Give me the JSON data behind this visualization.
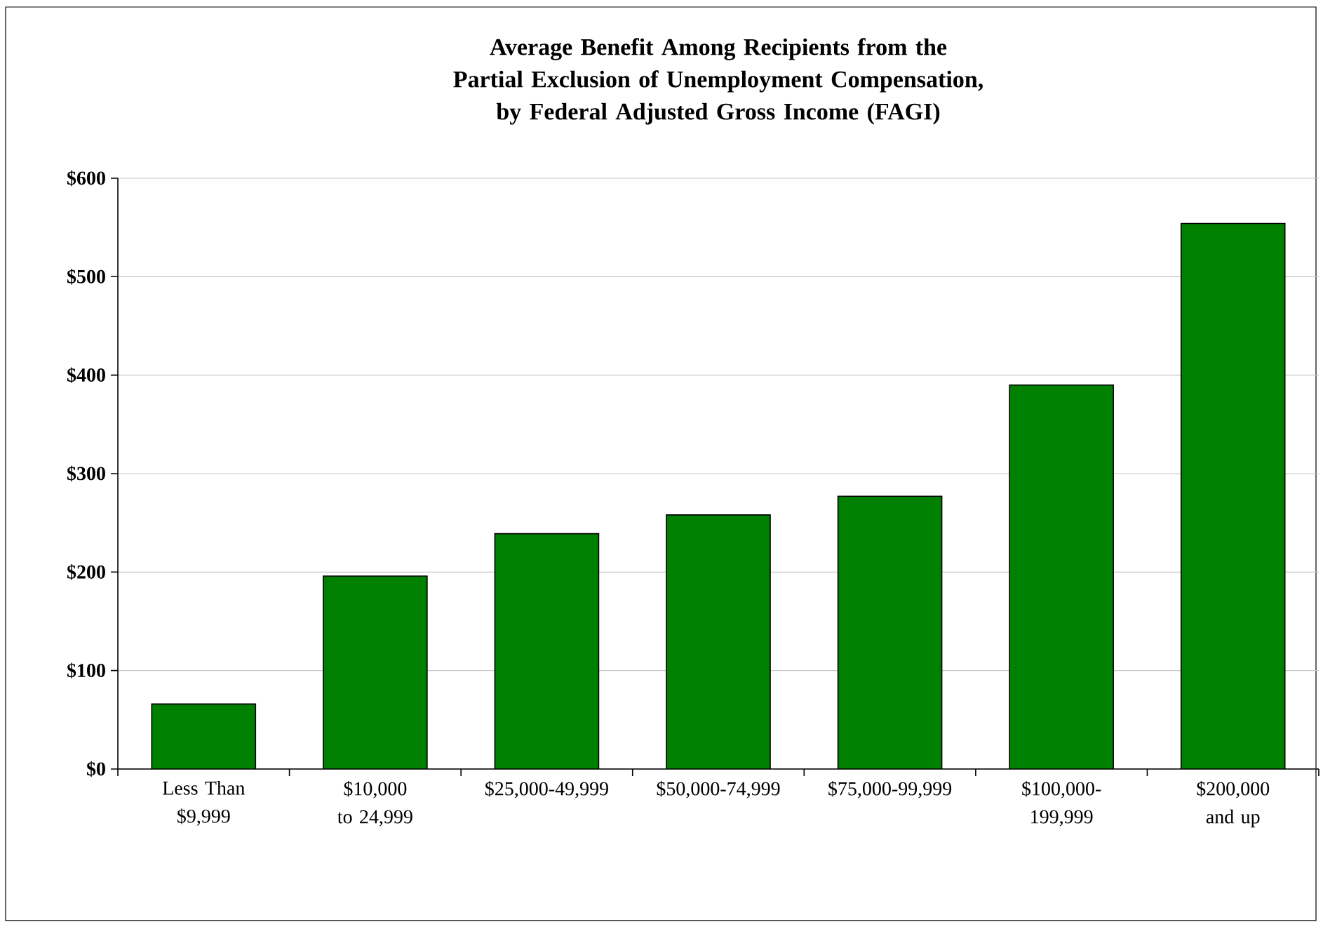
{
  "chart_data": {
    "type": "bar",
    "title": "Average Benefit Among Recipients from the Partial Exclusion of Unemployment Compensation, by Federal Adjusted Gross Income (FAGI)",
    "categories": [
      "Less Than $9,999",
      "$10,000 to 24,999",
      "$25,000-49,999",
      "$50,000-74,999",
      "$75,000-99,999",
      "$100,000-199,999",
      "$200,000 and up"
    ],
    "values": [
      66,
      196,
      239,
      258,
      277,
      390,
      554
    ],
    "color": "#008000",
    "ylim": [
      0,
      600
    ],
    "yticks": [
      {
        "value": 0,
        "label": "$0"
      },
      {
        "value": 100,
        "label": "$100"
      },
      {
        "value": 200,
        "label": "$200"
      },
      {
        "value": 300,
        "label": "$300"
      },
      {
        "value": 400,
        "label": "$400"
      },
      {
        "value": 500,
        "label": "$500"
      },
      {
        "value": 600,
        "label": "$600"
      }
    ],
    "grid": "y"
  }
}
